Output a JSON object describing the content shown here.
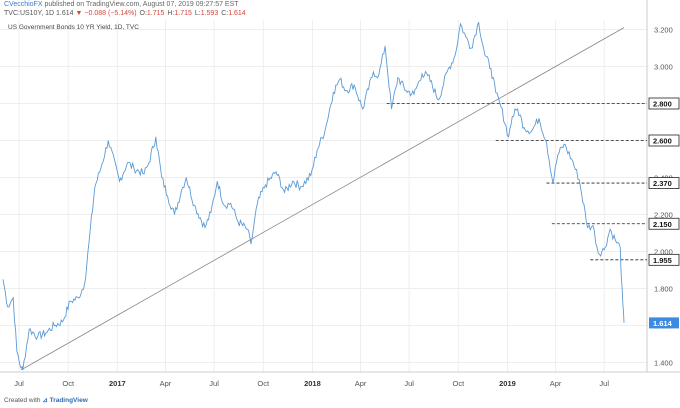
{
  "header": {
    "author": "CVecchioFX",
    "published": "published on TradingView.com, August 07, 2019 09:27:57 EST",
    "symbol": "TVC:US10Y, 1D",
    "last": "1.614",
    "change": "−0.088 (−5.14%)",
    "o_label": "O:",
    "o": "1.715",
    "h_label": "H:",
    "h": "1.715",
    "l_label": "L:",
    "l": "1.593",
    "c_label": "C:",
    "c": "1.614"
  },
  "chart_title": "US Government Bonds 10 YR Yield, 1D, TVC",
  "footer": {
    "prefix": "Created with",
    "brand": "TradingView"
  },
  "colors": {
    "line": "#5b9bd5",
    "trendline": "#888888",
    "level_line": "#222222",
    "last_badge": "#3d8be0",
    "grid": "#eeeeee"
  },
  "chart_data": {
    "type": "line",
    "title": "US Government Bonds 10 YR Yield, 1D, TVC",
    "x_range": [
      "2016-06-01",
      "2019-08-07"
    ],
    "ylim": [
      1.3,
      3.3
    ],
    "y_ticks": [
      "3.200",
      "3.000",
      "2.800",
      "2.600",
      "2.400",
      "2.200",
      "2.000",
      "1.800",
      "1.600",
      "1.400"
    ],
    "x_ticks": [
      {
        "label": "Jul",
        "date": "2016-07-01",
        "year": false
      },
      {
        "label": "Oct",
        "date": "2016-10-01",
        "year": false
      },
      {
        "label": "2017",
        "date": "2017-01-01",
        "year": true
      },
      {
        "label": "Apr",
        "date": "2017-04-01",
        "year": false
      },
      {
        "label": "Jul",
        "date": "2017-07-01",
        "year": false
      },
      {
        "label": "Oct",
        "date": "2017-10-01",
        "year": false
      },
      {
        "label": "2018",
        "date": "2018-01-01",
        "year": true
      },
      {
        "label": "Apr",
        "date": "2018-04-01",
        "year": false
      },
      {
        "label": "Jul",
        "date": "2018-07-01",
        "year": false
      },
      {
        "label": "Oct",
        "date": "2018-10-01",
        "year": false
      },
      {
        "label": "2019",
        "date": "2019-01-01",
        "year": true
      },
      {
        "label": "Apr",
        "date": "2019-04-01",
        "year": false
      },
      {
        "label": "Jul",
        "date": "2019-07-01",
        "year": false
      }
    ],
    "series": [
      {
        "x": [
          "2016-06-01",
          "2016-06-10",
          "2016-06-20",
          "2016-06-27",
          "2016-07-05",
          "2016-07-08",
          "2016-07-20",
          "2016-08-05",
          "2016-08-20",
          "2016-09-05",
          "2016-09-20",
          "2016-10-05",
          "2016-10-20",
          "2016-11-01",
          "2016-11-09",
          "2016-11-20",
          "2016-12-01",
          "2016-12-15",
          "2017-01-05",
          "2017-01-20",
          "2017-02-01",
          "2017-02-20",
          "2017-03-01",
          "2017-03-14",
          "2017-03-25",
          "2017-04-05",
          "2017-04-18",
          "2017-05-01",
          "2017-05-10",
          "2017-05-25",
          "2017-06-14",
          "2017-06-25",
          "2017-07-07",
          "2017-07-20",
          "2017-08-01",
          "2017-08-15",
          "2017-09-01",
          "2017-09-08",
          "2017-09-20",
          "2017-10-05",
          "2017-10-25",
          "2017-11-10",
          "2017-11-25",
          "2017-12-10",
          "2017-12-29",
          "2018-01-10",
          "2018-01-25",
          "2018-02-09",
          "2018-02-21",
          "2018-03-05",
          "2018-03-20",
          "2018-04-05",
          "2018-04-25",
          "2018-05-05",
          "2018-05-17",
          "2018-05-29",
          "2018-06-10",
          "2018-06-25",
          "2018-07-10",
          "2018-07-25",
          "2018-08-05",
          "2018-08-25",
          "2018-09-10",
          "2018-09-25",
          "2018-10-05",
          "2018-10-15",
          "2018-10-25",
          "2018-11-08",
          "2018-11-20",
          "2018-12-01",
          "2018-12-10",
          "2018-12-20",
          "2019-01-03",
          "2019-01-10",
          "2019-01-20",
          "2019-02-01",
          "2019-02-15",
          "2019-03-01",
          "2019-03-15",
          "2019-03-27",
          "2019-04-05",
          "2019-04-17",
          "2019-05-01",
          "2019-05-15",
          "2019-05-31",
          "2019-06-10",
          "2019-06-20",
          "2019-07-01",
          "2019-07-12",
          "2019-07-22",
          "2019-07-31",
          "2019-08-02",
          "2019-08-05",
          "2019-08-07"
        ],
        "values": [
          1.85,
          1.7,
          1.75,
          1.46,
          1.37,
          1.36,
          1.58,
          1.54,
          1.56,
          1.6,
          1.62,
          1.73,
          1.75,
          1.83,
          2.05,
          2.35,
          2.45,
          2.6,
          2.38,
          2.48,
          2.45,
          2.42,
          2.48,
          2.62,
          2.4,
          2.3,
          2.2,
          2.33,
          2.4,
          2.25,
          2.13,
          2.21,
          2.38,
          2.25,
          2.26,
          2.16,
          2.12,
          2.04,
          2.26,
          2.36,
          2.43,
          2.32,
          2.38,
          2.35,
          2.41,
          2.55,
          2.66,
          2.86,
          2.93,
          2.87,
          2.9,
          2.77,
          2.97,
          2.95,
          3.11,
          2.77,
          2.94,
          2.87,
          2.85,
          2.96,
          2.95,
          2.82,
          2.97,
          3.06,
          3.23,
          3.16,
          3.1,
          3.24,
          3.06,
          2.99,
          2.86,
          2.78,
          2.62,
          2.73,
          2.77,
          2.67,
          2.65,
          2.72,
          2.59,
          2.37,
          2.52,
          2.58,
          2.5,
          2.39,
          2.13,
          2.14,
          1.99,
          2.01,
          2.12,
          2.06,
          2.02,
          1.86,
          1.71,
          1.614
        ]
      }
    ],
    "trendline": {
      "x": [
        "2016-07-05",
        "2019-08-07"
      ],
      "y": [
        1.36,
        3.21
      ]
    },
    "levels": [
      {
        "label": "2.800",
        "value": 2.8,
        "from": "2018-05-20"
      },
      {
        "label": "2.600",
        "value": 2.6,
        "from": "2018-12-10"
      },
      {
        "label": "2.370",
        "value": 2.37,
        "from": "2019-03-15"
      },
      {
        "label": "2.150",
        "value": 2.15,
        "from": "2019-03-25"
      },
      {
        "label": "1.955",
        "value": 1.955,
        "from": "2019-06-05"
      }
    ],
    "last_value": {
      "label": "1.614",
      "value": 1.614
    }
  }
}
